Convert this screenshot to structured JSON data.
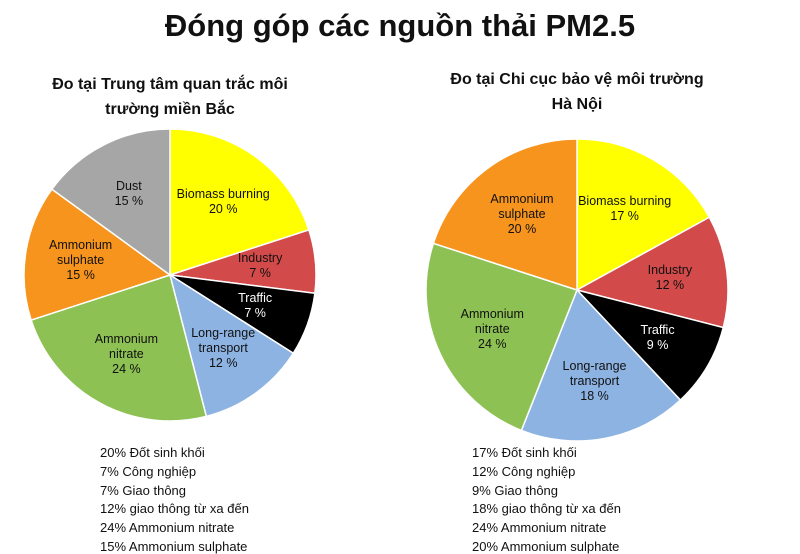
{
  "title": "Đóng góp các nguồn thải PM2.5",
  "chart_data": [
    {
      "type": "pie",
      "subtitle": "Đo tại Trung tâm quan trắc môi trường miền Bắc",
      "categories": [
        "Biomass burning",
        "Industry",
        "Traffic",
        "Long-range transport",
        "Ammonium nitrate",
        "Ammonium sulphate",
        "Dust"
      ],
      "values": [
        20,
        7,
        7,
        12,
        24,
        15,
        15
      ],
      "value_labels": [
        "20 %",
        "7 %",
        "7 %",
        "12 %",
        "24 %",
        "15 %",
        "15 %"
      ],
      "colors": [
        "#ffff00",
        "#d24a4a",
        "#000000",
        "#8db3e2",
        "#8dc153",
        "#f7941e",
        "#a6a6a6"
      ],
      "notes": [
        "20% Đốt sinh khối",
        "7% Công nghiệp",
        "7% Giao thông",
        "12% giao thông từ xa đến",
        "24% Ammonium nitrate",
        "15% Ammonium sulphate"
      ]
    },
    {
      "type": "pie",
      "subtitle": "Đo tại Chi cục bảo vệ môi trường Hà Nội",
      "categories": [
        "Biomass burning",
        "Industry",
        "Traffic",
        "Long-range transport",
        "Ammonium nitrate",
        "Ammonium sulphate"
      ],
      "values": [
        17,
        12,
        9,
        18,
        24,
        20
      ],
      "value_labels": [
        "17 %",
        "12 %",
        "9 %",
        "18 %",
        "24 %",
        "20 %"
      ],
      "colors": [
        "#ffff00",
        "#d24a4a",
        "#000000",
        "#8db3e2",
        "#8dc153",
        "#f7941e"
      ],
      "notes": [
        "17% Đốt sinh khối",
        "12% Công nghiệp",
        "9% Giao thông",
        "18% giao thông từ xa đến",
        "24% Ammonium nitrate",
        "20% Ammonium sulphate"
      ]
    }
  ]
}
